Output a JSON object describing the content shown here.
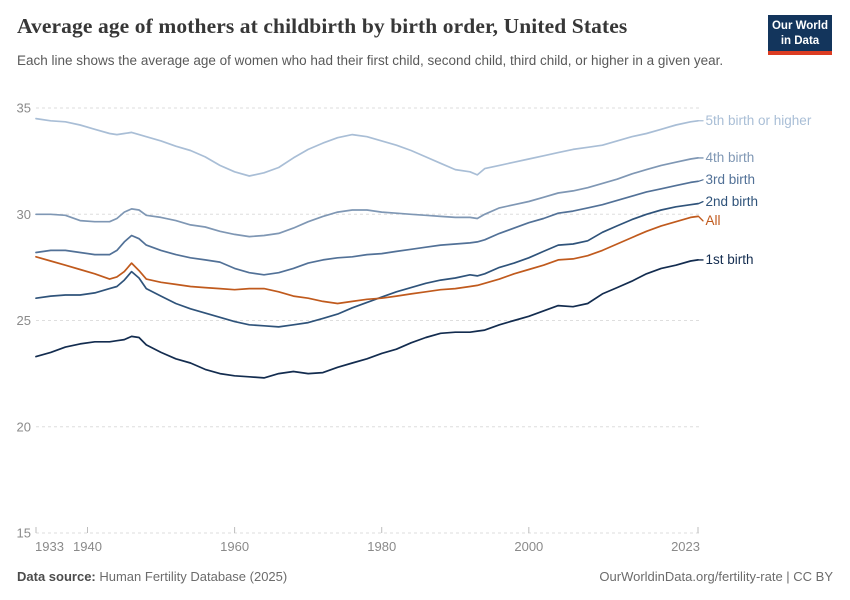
{
  "header": {
    "title": "Average age of mothers at childbirth by birth order, United States",
    "subtitle": "Each line shows the average age of women who had their first child, second child, third child, or higher in a given year.",
    "logo": {
      "line1": "Our World",
      "line2": "in Data",
      "bg_color": "#13355c",
      "bar_color": "#dc3c22"
    }
  },
  "footer": {
    "source_label": "Data source:",
    "source_value": " Human Fertility Database (2025)",
    "link": "OurWorldinData.org/fertility-rate | CC BY"
  },
  "chart_data": {
    "type": "line",
    "title": "Average age of mothers at childbirth by birth order, United States",
    "xlabel": "",
    "ylabel": "",
    "xlim": [
      1933,
      2023
    ],
    "ylim": [
      15,
      35.6
    ],
    "grid": "horizontal-dashed",
    "legend_position": "right-of-line-ends",
    "xticks": [
      1933,
      1940,
      1960,
      1980,
      2000,
      2023
    ],
    "yticks": [
      15,
      20,
      25,
      30,
      35
    ],
    "x": [
      1933,
      1935,
      1937,
      1939,
      1941,
      1943,
      1944,
      1945,
      1946,
      1947,
      1948,
      1950,
      1952,
      1954,
      1956,
      1958,
      1960,
      1962,
      1964,
      1966,
      1968,
      1970,
      1972,
      1974,
      1976,
      1978,
      1980,
      1982,
      1984,
      1986,
      1988,
      1990,
      1992,
      1993,
      1994,
      1996,
      1998,
      2000,
      2002,
      2004,
      2006,
      2008,
      2010,
      2012,
      2014,
      2016,
      2018,
      2020,
      2022,
      2023
    ],
    "series": [
      {
        "name": "5th birth or higher",
        "color": "#a9bed6",
        "values": [
          34.5,
          34.4,
          34.35,
          34.2,
          34.0,
          33.8,
          33.75,
          33.8,
          33.85,
          33.75,
          33.65,
          33.45,
          33.2,
          33.0,
          32.7,
          32.3,
          32.0,
          31.8,
          31.95,
          32.2,
          32.65,
          33.05,
          33.35,
          33.6,
          33.75,
          33.65,
          33.45,
          33.25,
          33.0,
          32.7,
          32.4,
          32.1,
          32.0,
          31.85,
          32.15,
          32.3,
          32.45,
          32.6,
          32.75,
          32.9,
          33.05,
          33.15,
          33.25,
          33.45,
          33.65,
          33.8,
          34.0,
          34.2,
          34.35,
          34.4
        ]
      },
      {
        "name": "4th birth",
        "color": "#7f97b4",
        "values": [
          30.0,
          30.0,
          29.95,
          29.7,
          29.65,
          29.65,
          29.8,
          30.1,
          30.25,
          30.2,
          29.95,
          29.85,
          29.7,
          29.5,
          29.4,
          29.2,
          29.05,
          28.95,
          29.0,
          29.1,
          29.35,
          29.65,
          29.9,
          30.1,
          30.2,
          30.2,
          30.1,
          30.05,
          30.0,
          29.95,
          29.9,
          29.85,
          29.85,
          29.8,
          30.0,
          30.3,
          30.45,
          30.6,
          30.8,
          31.0,
          31.1,
          31.25,
          31.45,
          31.65,
          31.9,
          32.1,
          32.3,
          32.45,
          32.6,
          32.65
        ]
      },
      {
        "name": "3rd birth",
        "color": "#527197",
        "values": [
          28.2,
          28.3,
          28.3,
          28.2,
          28.1,
          28.1,
          28.3,
          28.7,
          29.0,
          28.85,
          28.55,
          28.3,
          28.1,
          27.95,
          27.85,
          27.75,
          27.45,
          27.25,
          27.15,
          27.25,
          27.45,
          27.7,
          27.85,
          27.95,
          28.0,
          28.1,
          28.15,
          28.25,
          28.35,
          28.45,
          28.55,
          28.6,
          28.65,
          28.7,
          28.8,
          29.1,
          29.35,
          29.6,
          29.8,
          30.05,
          30.15,
          30.3,
          30.45,
          30.65,
          30.85,
          31.05,
          31.2,
          31.35,
          31.5,
          31.55
        ]
      },
      {
        "name": "2nd birth",
        "color": "#2f537a",
        "values": [
          26.05,
          26.15,
          26.2,
          26.2,
          26.3,
          26.5,
          26.6,
          26.9,
          27.3,
          27.0,
          26.5,
          26.15,
          25.8,
          25.55,
          25.35,
          25.15,
          24.95,
          24.8,
          24.75,
          24.7,
          24.8,
          24.9,
          25.1,
          25.3,
          25.6,
          25.85,
          26.1,
          26.35,
          26.55,
          26.75,
          26.9,
          27.0,
          27.15,
          27.1,
          27.2,
          27.5,
          27.7,
          27.95,
          28.25,
          28.55,
          28.6,
          28.75,
          29.15,
          29.45,
          29.75,
          30.0,
          30.2,
          30.35,
          30.45,
          30.5
        ]
      },
      {
        "name": "All",
        "color": "#c05a1d",
        "values": [
          28.0,
          27.8,
          27.6,
          27.4,
          27.2,
          26.95,
          27.05,
          27.3,
          27.7,
          27.35,
          26.95,
          26.8,
          26.7,
          26.6,
          26.55,
          26.5,
          26.45,
          26.5,
          26.5,
          26.35,
          26.15,
          26.05,
          25.9,
          25.8,
          25.9,
          26.0,
          26.05,
          26.15,
          26.25,
          26.35,
          26.45,
          26.5,
          26.6,
          26.65,
          26.75,
          26.95,
          27.2,
          27.4,
          27.6,
          27.85,
          27.9,
          28.05,
          28.3,
          28.6,
          28.9,
          29.2,
          29.45,
          29.65,
          29.85,
          29.9
        ]
      },
      {
        "name": "1st birth",
        "color": "#132c4f",
        "values": [
          23.3,
          23.5,
          23.75,
          23.9,
          24.0,
          24.0,
          24.05,
          24.1,
          24.25,
          24.2,
          23.85,
          23.5,
          23.2,
          23.0,
          22.7,
          22.5,
          22.4,
          22.35,
          22.3,
          22.5,
          22.6,
          22.5,
          22.55,
          22.8,
          23.0,
          23.2,
          23.45,
          23.65,
          23.95,
          24.2,
          24.4,
          24.45,
          24.45,
          24.5,
          24.55,
          24.8,
          25.0,
          25.2,
          25.45,
          25.7,
          25.65,
          25.8,
          26.25,
          26.55,
          26.85,
          27.2,
          27.45,
          27.6,
          27.8,
          27.85
        ]
      }
    ]
  }
}
